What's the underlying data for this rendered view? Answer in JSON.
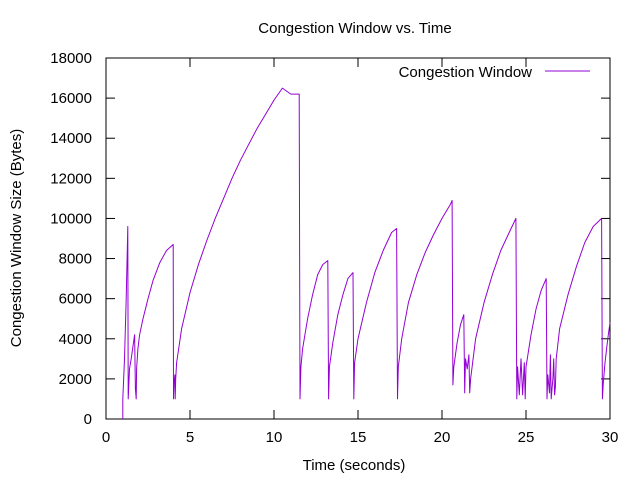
{
  "chart_data": {
    "type": "line",
    "title": "Congestion Window vs. Time",
    "xlabel": "Time (seconds)",
    "ylabel": "Congestion Window Size (Bytes)",
    "xlim": [
      0,
      30
    ],
    "ylim": [
      0,
      18000
    ],
    "xticks": [
      0,
      5,
      10,
      15,
      20,
      25,
      30
    ],
    "yticks": [
      0,
      2000,
      4000,
      6000,
      8000,
      10000,
      12000,
      14000,
      16000,
      18000
    ],
    "grid": false,
    "legend_position": "top-right",
    "series": [
      {
        "name": "Congestion Window",
        "color": "#9400d3",
        "x": [
          1.0,
          1.0,
          1.1,
          1.2,
          1.3,
          1.32,
          1.4,
          1.5,
          1.6,
          1.7,
          1.75,
          1.8,
          1.82,
          1.9,
          2.0,
          2.2,
          2.5,
          2.8,
          3.2,
          3.6,
          4.0,
          4.02,
          4.05,
          4.1,
          4.12,
          4.15,
          4.2,
          4.5,
          5.0,
          5.5,
          6.0,
          6.5,
          7.0,
          7.5,
          8.0,
          8.5,
          9.0,
          9.5,
          10.0,
          10.5,
          11.0,
          11.5,
          11.55,
          11.6,
          11.7,
          12.0,
          12.3,
          12.6,
          12.9,
          13.2,
          13.25,
          13.3,
          13.5,
          13.8,
          14.1,
          14.4,
          14.7,
          14.75,
          14.8,
          15.0,
          15.5,
          16.0,
          16.5,
          17.0,
          17.3,
          17.35,
          17.4,
          17.6,
          18.0,
          18.5,
          19.0,
          19.5,
          20.0,
          20.5,
          20.6,
          20.65,
          20.7,
          20.9,
          21.1,
          21.3,
          21.35,
          21.4,
          21.5,
          21.6,
          21.65,
          21.7,
          22.0,
          22.5,
          23.0,
          23.5,
          24.0,
          24.4,
          24.45,
          24.5,
          24.6,
          24.7,
          24.8,
          24.9,
          24.95,
          25.0,
          25.3,
          25.6,
          25.9,
          26.2,
          26.25,
          26.3,
          26.4,
          26.45,
          26.5,
          26.55,
          26.6,
          26.65,
          26.7,
          26.75,
          26.8,
          27.0,
          27.5,
          28.0,
          28.5,
          29.0,
          29.5,
          29.55,
          29.6,
          29.7,
          29.8,
          29.9,
          30.0
        ],
        "y": [
          0,
          1000,
          3000,
          6000,
          9600,
          1000,
          2500,
          3000,
          3600,
          4200,
          1500,
          1000,
          2500,
          3500,
          4200,
          5000,
          6000,
          6900,
          7800,
          8400,
          8700,
          1000,
          1800,
          2200,
          1000,
          2000,
          2800,
          4500,
          6300,
          7700,
          8900,
          10000,
          11000,
          12000,
          12900,
          13700,
          14500,
          15200,
          15900,
          16500,
          16200,
          16200,
          1000,
          2600,
          3500,
          5000,
          6200,
          7200,
          7700,
          7900,
          1000,
          2600,
          3800,
          5200,
          6200,
          7000,
          7300,
          1000,
          2800,
          4000,
          5800,
          7300,
          8400,
          9300,
          9500,
          1000,
          2600,
          4000,
          5800,
          7200,
          8300,
          9200,
          10000,
          10700,
          10900,
          1700,
          2600,
          3800,
          4700,
          5200,
          1300,
          3000,
          2500,
          3200,
          1300,
          2000,
          4000,
          5800,
          7200,
          8400,
          9300,
          10000,
          1000,
          2600,
          1200,
          3000,
          1200,
          2800,
          1000,
          2600,
          4200,
          5500,
          6400,
          7000,
          1000,
          2200,
          1300,
          3200,
          1000,
          1500,
          2000,
          3000,
          1200,
          1600,
          3000,
          4500,
          6200,
          7600,
          8800,
          9600,
          10000,
          1000,
          1800,
          2800,
          3500,
          4200,
          4800
        ]
      }
    ]
  }
}
